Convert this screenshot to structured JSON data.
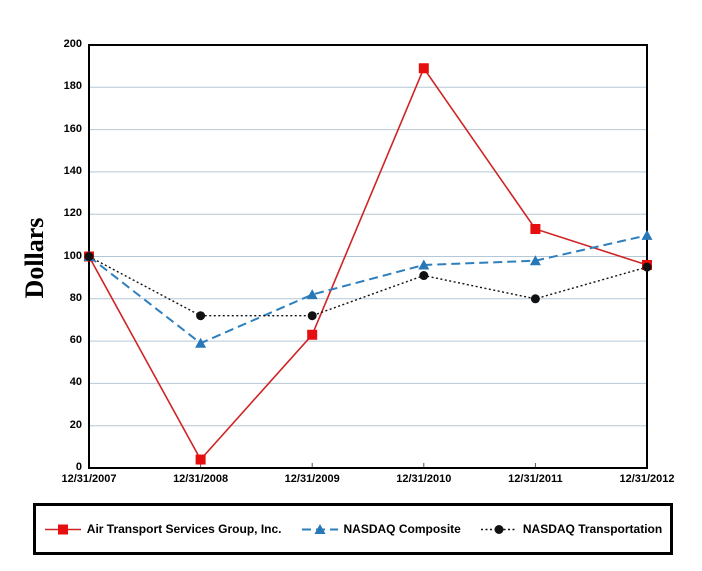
{
  "chart_data": {
    "type": "line",
    "title": "",
    "ylabel": "Dollars",
    "xlabel": "",
    "ylim": [
      0,
      200
    ],
    "yticks": [
      0,
      20,
      40,
      60,
      80,
      100,
      120,
      140,
      160,
      180,
      200
    ],
    "grid": true,
    "legend_position": "bottom",
    "categories": [
      "12/31/2007",
      "12/31/2008",
      "12/31/2009",
      "12/31/2010",
      "12/31/2011",
      "12/31/2012"
    ],
    "series": [
      {
        "name": "Air Transport Services Group, Inc.",
        "values": [
          100,
          4,
          63,
          189,
          113,
          96
        ],
        "color": "#d02424",
        "marker_color": "#e60f0f",
        "line_style": "solid",
        "marker": "square"
      },
      {
        "name": "NASDAQ Composite",
        "values": [
          100,
          59,
          82,
          96,
          98,
          110
        ],
        "color": "#2e7fbe",
        "marker_color": "#2878b8",
        "line_style": "dashed",
        "marker": "triangle"
      },
      {
        "name": "NASDAQ Transportation",
        "values": [
          100,
          72,
          72,
          91,
          80,
          95
        ],
        "color": "#111111",
        "marker_color": "#111111",
        "line_style": "dotted",
        "marker": "circle"
      }
    ],
    "colors": {
      "grid": "#b4c7d6",
      "axis": "#000000",
      "background": "#ffffff"
    }
  }
}
